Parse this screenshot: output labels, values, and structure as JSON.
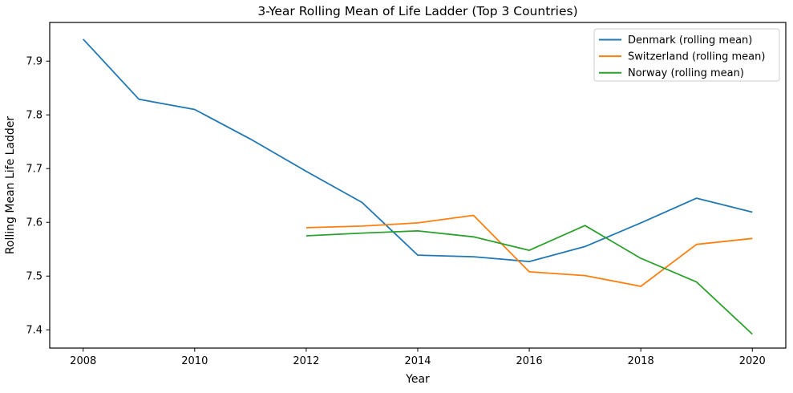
{
  "chart_data": {
    "type": "line",
    "title": "3-Year Rolling Mean of Life Ladder (Top 3 Countries)",
    "xlabel": "Year",
    "ylabel": "Rolling Mean Life Ladder",
    "xlim": [
      2007.4,
      2020.6
    ],
    "ylim": [
      7.366,
      7.972
    ],
    "xticks": [
      2008,
      2010,
      2012,
      2014,
      2016,
      2018,
      2020
    ],
    "yticks": [
      7.4,
      7.5,
      7.6,
      7.7,
      7.8,
      7.9
    ],
    "grid": false,
    "legend_position": "upper right",
    "background_color": "#ffffff",
    "spine_color": "#000000",
    "legend_border_color": "#cccccc",
    "series": [
      {
        "name": "Denmark (rolling mean)",
        "color": "#1f77b4",
        "x": [
          2008,
          2009,
          2010,
          2011,
          2012,
          2013,
          2014,
          2015,
          2016,
          2017,
          2018,
          2019,
          2020
        ],
        "y": [
          7.941,
          7.829,
          7.81,
          7.755,
          7.695,
          7.637,
          7.539,
          7.536,
          7.527,
          7.555,
          7.599,
          7.645,
          7.619
        ]
      },
      {
        "name": "Switzerland (rolling mean)",
        "color": "#ff7f0e",
        "x": [
          2012,
          2013,
          2014,
          2015,
          2016,
          2017,
          2018,
          2019,
          2020
        ],
        "y": [
          7.59,
          7.593,
          7.599,
          7.613,
          7.508,
          7.501,
          7.481,
          7.559,
          7.57
        ]
      },
      {
        "name": "Norway (rolling mean)",
        "color": "#2ca02c",
        "x": [
          2012,
          2013,
          2014,
          2015,
          2016,
          2017,
          2018,
          2019,
          2020
        ],
        "y": [
          7.575,
          7.58,
          7.584,
          7.573,
          7.548,
          7.594,
          7.533,
          7.489,
          7.392
        ]
      }
    ]
  }
}
